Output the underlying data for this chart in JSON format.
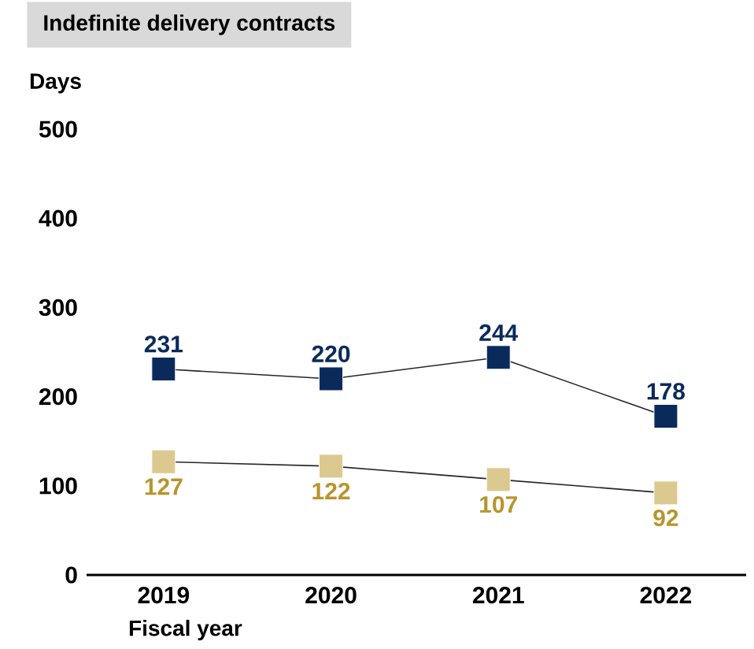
{
  "chart_data": {
    "type": "line",
    "title": "Indefinite delivery contracts",
    "ylabel": "Days",
    "xlabel": "Fiscal year",
    "categories": [
      "2019",
      "2020",
      "2021",
      "2022"
    ],
    "series": [
      {
        "color": "#0b2a5c",
        "values": [
          231,
          220,
          244,
          178
        ]
      },
      {
        "color": "#dcc98f",
        "values": [
          127,
          122,
          107,
          92
        ]
      }
    ],
    "ylim": [
      0,
      500
    ],
    "yticks": [
      0,
      100,
      200,
      300,
      400,
      500
    ],
    "marker": "square",
    "line_style": "solid",
    "data_labels": true
  }
}
